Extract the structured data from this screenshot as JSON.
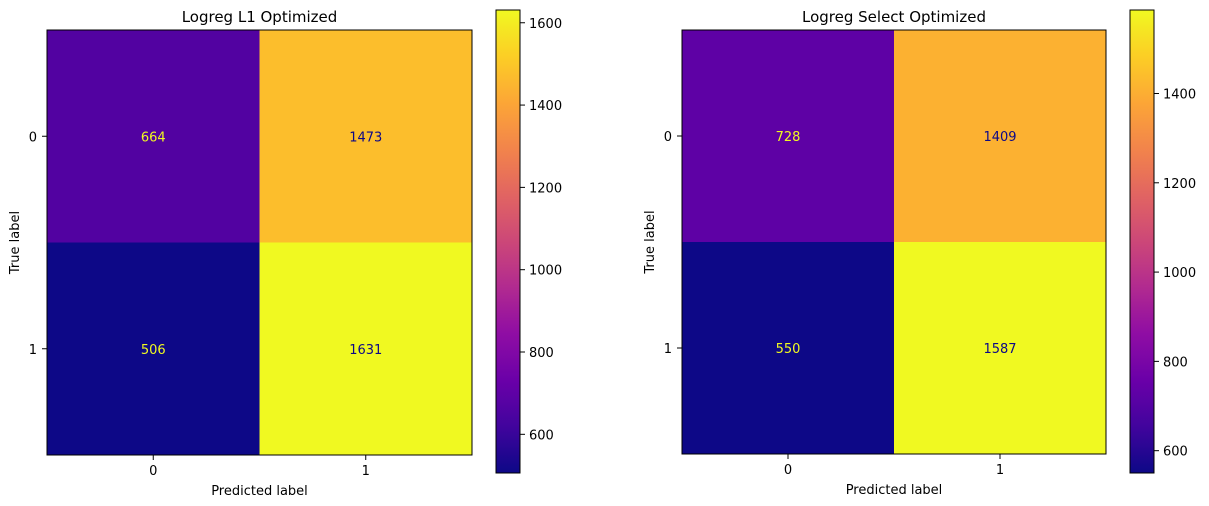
{
  "chart_data": [
    {
      "type": "heatmap",
      "title": "Logreg L1 Optimized",
      "xlabel": "Predicted label",
      "ylabel": "True label",
      "x_categories": [
        "0",
        "1"
      ],
      "y_categories": [
        "0",
        "1"
      ],
      "values": [
        [
          664,
          1473
        ],
        [
          506,
          1631
        ]
      ],
      "colormap": "plasma",
      "colorbar": {
        "min": 506,
        "max": 1631,
        "ticks": [
          "600",
          "800",
          "1000",
          "1200",
          "1400",
          "1600"
        ]
      }
    },
    {
      "type": "heatmap",
      "title": "Logreg Select Optimized",
      "xlabel": "Predicted label",
      "ylabel": "True label",
      "x_categories": [
        "0",
        "1"
      ],
      "y_categories": [
        "0",
        "1"
      ],
      "values": [
        [
          728,
          1409
        ],
        [
          550,
          1587
        ]
      ],
      "colormap": "plasma",
      "colorbar": {
        "min": 550,
        "max": 1587,
        "ticks": [
          "600",
          "800",
          "1000",
          "1200",
          "1400"
        ]
      }
    }
  ],
  "colors": {
    "low_text": "#f0f921",
    "high_text": "#0d0887",
    "axis": "#000000"
  }
}
